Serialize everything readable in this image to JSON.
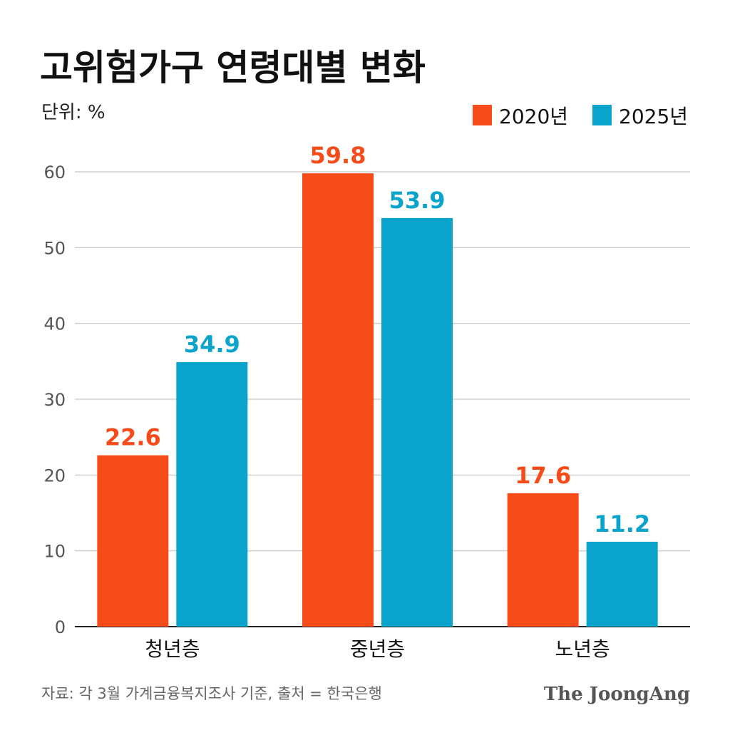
{
  "chart_data": {
    "type": "bar",
    "title": "고위험가구 연령대별 변화",
    "unit_label": "단위: %",
    "categories": [
      "청년층",
      "중년층",
      "노년층"
    ],
    "series": [
      {
        "name": "2020년",
        "values": [
          22.6,
          59.8,
          17.6
        ],
        "color": "#F84B1A"
      },
      {
        "name": "2025년",
        "values": [
          34.9,
          53.9,
          11.2
        ],
        "color": "#0AA3CC"
      }
    ],
    "yticks": [
      0,
      10,
      20,
      30,
      40,
      50,
      60
    ],
    "ylim": [
      0,
      60
    ],
    "grid": true,
    "legend_position": "top-right",
    "xlabel": "",
    "ylabel": ""
  },
  "footer": {
    "source": "자료: 각 3월 가계금융복지조사 기준, 출처 = 한국은행",
    "logo": "The JoongAng"
  }
}
